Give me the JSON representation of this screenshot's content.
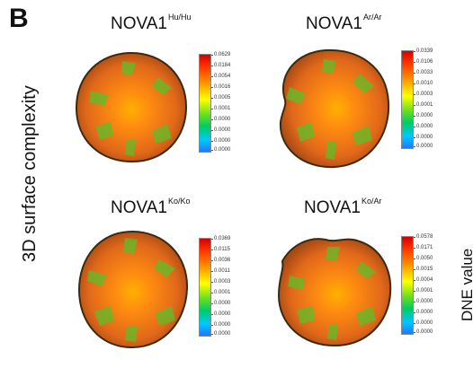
{
  "panel_letter": "B",
  "y_axis_label": "3D surface complexity",
  "colorbar_label": "DNE value",
  "colors": {
    "surface_base": "#e0681a",
    "surface_hot": "#ff9a00",
    "surface_green": "#5cbf2a",
    "outline": "#3a2a10"
  },
  "panels": [
    {
      "name": "NOVA1",
      "genotype": "Hu/Hu",
      "scale_ticks": [
        "0.0629",
        "0.0184",
        "0.0054",
        "0.0016",
        "0.0005",
        "0.0001",
        "0.0000",
        "0.0000",
        "0.0000",
        "0.0000"
      ]
    },
    {
      "name": "NOVA1",
      "genotype": "Ar/Ar",
      "scale_ticks": [
        "0.0339",
        "0.0106",
        "0.0033",
        "0.0010",
        "0.0003",
        "0.0001",
        "0.0000",
        "0.0000",
        "0.0000",
        "0.0000"
      ]
    },
    {
      "name": "NOVA1",
      "genotype": "Ko/Ko",
      "scale_ticks": [
        "0.0369",
        "0.0115",
        "0.0036",
        "0.0011",
        "0.0003",
        "0.0001",
        "0.0000",
        "0.0000",
        "0.0000",
        "0.0000"
      ]
    },
    {
      "name": "NOVA1",
      "genotype": "Ko/Ar",
      "scale_ticks": [
        "0.0578",
        "0.0171",
        "0.0050",
        "0.0015",
        "0.0004",
        "0.0001",
        "0.0000",
        "0.0000",
        "0.0000",
        "0.0000"
      ]
    }
  ]
}
